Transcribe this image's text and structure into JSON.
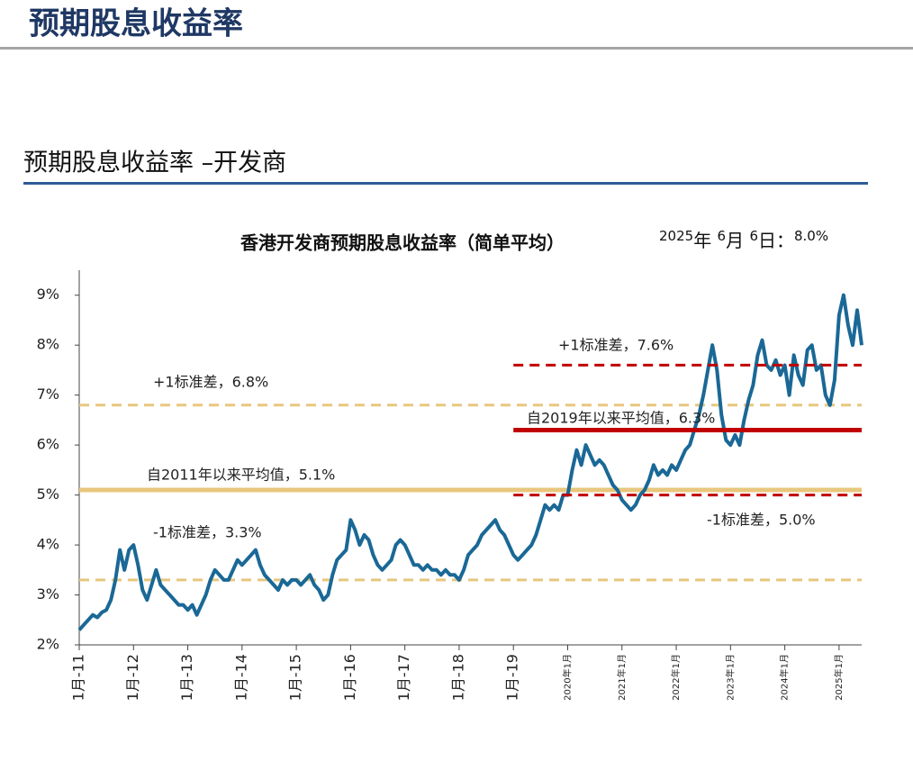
{
  "header": {
    "title": "预期股息收益率",
    "subtitle": "预期股息收益率 –开发商"
  },
  "chart_data": {
    "type": "line",
    "title": "香港开发商预期股息收益率（简单平均）",
    "date_note": [
      "2025",
      "年 ",
      "6",
      "月 ",
      "6",
      "日：",
      "8.0%"
    ],
    "x": [
      "2011-01",
      "2011-02",
      "2011-03",
      "2011-04",
      "2011-05",
      "2011-06",
      "2011-07",
      "2011-08",
      "2011-09",
      "2011-10",
      "2011-11",
      "2011-12",
      "2012-01",
      "2012-02",
      "2012-03",
      "2012-04",
      "2012-05",
      "2012-06",
      "2012-07",
      "2012-08",
      "2012-09",
      "2012-10",
      "2012-11",
      "2012-12",
      "2013-01",
      "2013-02",
      "2013-03",
      "2013-04",
      "2013-05",
      "2013-06",
      "2013-07",
      "2013-08",
      "2013-09",
      "2013-10",
      "2013-11",
      "2013-12",
      "2014-01",
      "2014-02",
      "2014-03",
      "2014-04",
      "2014-05",
      "2014-06",
      "2014-07",
      "2014-08",
      "2014-09",
      "2014-10",
      "2014-11",
      "2014-12",
      "2015-01",
      "2015-02",
      "2015-03",
      "2015-04",
      "2015-05",
      "2015-06",
      "2015-07",
      "2015-08",
      "2015-09",
      "2015-10",
      "2015-11",
      "2015-12",
      "2016-01",
      "2016-02",
      "2016-03",
      "2016-04",
      "2016-05",
      "2016-06",
      "2016-07",
      "2016-08",
      "2016-09",
      "2016-10",
      "2016-11",
      "2016-12",
      "2017-01",
      "2017-02",
      "2017-03",
      "2017-04",
      "2017-05",
      "2017-06",
      "2017-07",
      "2017-08",
      "2017-09",
      "2017-10",
      "2017-11",
      "2017-12",
      "2018-01",
      "2018-02",
      "2018-03",
      "2018-04",
      "2018-05",
      "2018-06",
      "2018-07",
      "2018-08",
      "2018-09",
      "2018-10",
      "2018-11",
      "2018-12",
      "2019-01",
      "2019-02",
      "2019-03",
      "2019-04",
      "2019-05",
      "2019-06",
      "2019-07",
      "2019-08",
      "2019-09",
      "2019-10",
      "2019-11",
      "2019-12",
      "2020-01",
      "2020-02",
      "2020-03",
      "2020-04",
      "2020-05",
      "2020-06",
      "2020-07",
      "2020-08",
      "2020-09",
      "2020-10",
      "2020-11",
      "2020-12",
      "2021-01",
      "2021-02",
      "2021-03",
      "2021-04",
      "2021-05",
      "2021-06",
      "2021-07",
      "2021-08",
      "2021-09",
      "2021-10",
      "2021-11",
      "2021-12",
      "2022-01",
      "2022-02",
      "2022-03",
      "2022-04",
      "2022-05",
      "2022-06",
      "2022-07",
      "2022-08",
      "2022-09",
      "2022-10",
      "2022-11",
      "2022-12",
      "2023-01",
      "2023-02",
      "2023-03",
      "2023-04",
      "2023-05",
      "2023-06",
      "2023-07",
      "2023-08",
      "2023-09",
      "2023-10",
      "2023-11",
      "2023-12",
      "2024-01",
      "2024-02",
      "2024-03",
      "2024-04",
      "2024-05",
      "2024-06",
      "2024-07",
      "2024-08",
      "2024-09",
      "2024-10",
      "2024-11",
      "2024-12",
      "2025-01",
      "2025-02",
      "2025-03",
      "2025-04",
      "2025-05",
      "2025-06"
    ],
    "series": [
      {
        "color": "#1a6896",
        "values": [
          2.3,
          2.4,
          2.5,
          2.6,
          2.55,
          2.65,
          2.7,
          2.9,
          3.3,
          3.9,
          3.5,
          3.9,
          4.0,
          3.6,
          3.1,
          2.9,
          3.2,
          3.5,
          3.2,
          3.1,
          3.0,
          2.9,
          2.8,
          2.8,
          2.7,
          2.8,
          2.6,
          2.8,
          3.0,
          3.3,
          3.5,
          3.4,
          3.3,
          3.3,
          3.5,
          3.7,
          3.6,
          3.7,
          3.8,
          3.9,
          3.6,
          3.4,
          3.3,
          3.2,
          3.1,
          3.3,
          3.2,
          3.3,
          3.3,
          3.2,
          3.3,
          3.4,
          3.2,
          3.1,
          2.9,
          3.0,
          3.4,
          3.7,
          3.8,
          3.9,
          4.5,
          4.3,
          4.0,
          4.2,
          4.1,
          3.8,
          3.6,
          3.5,
          3.6,
          3.7,
          4.0,
          4.1,
          4.0,
          3.8,
          3.6,
          3.6,
          3.5,
          3.6,
          3.5,
          3.5,
          3.4,
          3.5,
          3.4,
          3.4,
          3.3,
          3.5,
          3.8,
          3.9,
          4.0,
          4.2,
          4.3,
          4.4,
          4.5,
          4.3,
          4.2,
          4.0,
          3.8,
          3.7,
          3.8,
          3.9,
          4.0,
          4.2,
          4.5,
          4.8,
          4.7,
          4.8,
          4.7,
          5.0,
          5.0,
          5.5,
          5.9,
          5.6,
          6.0,
          5.8,
          5.6,
          5.7,
          5.6,
          5.4,
          5.2,
          5.1,
          4.9,
          4.8,
          4.7,
          4.8,
          5.0,
          5.1,
          5.3,
          5.6,
          5.4,
          5.5,
          5.4,
          5.6,
          5.5,
          5.7,
          5.9,
          6.0,
          6.3,
          6.6,
          7.0,
          7.5,
          8.0,
          7.5,
          6.6,
          6.1,
          6.0,
          6.2,
          6.0,
          6.5,
          6.9,
          7.2,
          7.8,
          8.1,
          7.6,
          7.5,
          7.7,
          7.4,
          7.6,
          7.0,
          7.8,
          7.4,
          7.2,
          7.9,
          8.0,
          7.5,
          7.6,
          7.0,
          6.8,
          7.3,
          8.6,
          9.0,
          8.4,
          8.0,
          8.7,
          8.0
        ]
      }
    ],
    "xlim": [
      "2011-01",
      "2025-06"
    ],
    "xticks": [
      {
        "value": "2011-01",
        "label": "1月-11"
      },
      {
        "value": "2012-01",
        "label": "1月-12"
      },
      {
        "value": "2013-01",
        "label": "1月-13"
      },
      {
        "value": "2014-01",
        "label": "1月-14"
      },
      {
        "value": "2015-01",
        "label": "1月-15"
      },
      {
        "value": "2016-01",
        "label": "1月-16"
      },
      {
        "value": "2017-01",
        "label": "1月-17"
      },
      {
        "value": "2018-01",
        "label": "1月-18"
      },
      {
        "value": "2019-01",
        "label": "1月-19"
      },
      {
        "value": "2020-01",
        "label": "2020年1月"
      },
      {
        "value": "2021-01",
        "label": "2021年1月"
      },
      {
        "value": "2022-01",
        "label": "2022年1月"
      },
      {
        "value": "2023-01",
        "label": "2023年1月"
      },
      {
        "value": "2024-01",
        "label": "2024年1月"
      },
      {
        "value": "2025-01",
        "label": "2025年1月"
      }
    ],
    "ylim": [
      2,
      9.5
    ],
    "yticks": [
      {
        "value": 2,
        "label": "2%"
      },
      {
        "value": 3,
        "label": "3%"
      },
      {
        "value": 4,
        "label": "4%"
      },
      {
        "value": 5,
        "label": "5%"
      },
      {
        "value": 6,
        "label": "6%"
      },
      {
        "value": 7,
        "label": "7%"
      },
      {
        "value": 8,
        "label": "8%"
      },
      {
        "value": 9,
        "label": "9%"
      }
    ],
    "reference_lines": [
      {
        "label": "+1标准差，6.8%",
        "value": 6.8,
        "start": "2011-01",
        "style": "dashed",
        "color": "#e8c77e"
      },
      {
        "label": "自2011年以来平均值，5.1%",
        "value": 5.1,
        "start": "2011-01",
        "style": "solid",
        "color": "#e8c77e"
      },
      {
        "label": "-1标准差，3.3%",
        "value": 3.3,
        "start": "2011-01",
        "style": "dashed",
        "color": "#e8c77e"
      },
      {
        "label": "+1标准差，7.6%",
        "value": 7.6,
        "start": "2019-01",
        "style": "dashed",
        "color": "#c00000"
      },
      {
        "label": "自2019年以来平均值，6.3%",
        "value": 6.3,
        "start": "2019-01",
        "style": "solid",
        "color": "#c00000"
      },
      {
        "label": "-1标准差，5.0%",
        "value": 5.0,
        "start": "2019-01",
        "style": "dashed",
        "color": "#c00000"
      }
    ]
  }
}
